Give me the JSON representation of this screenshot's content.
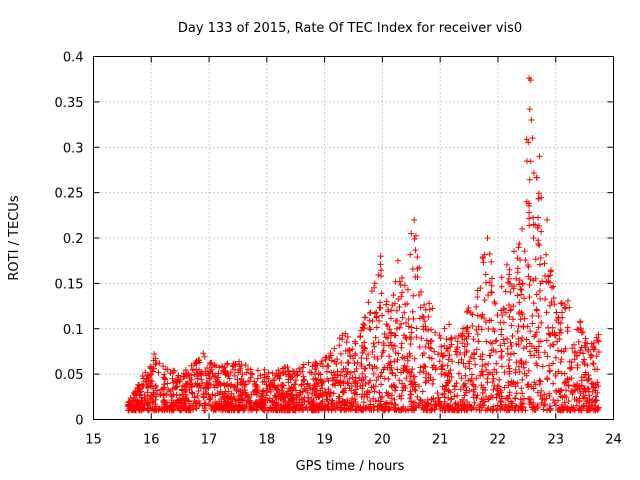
{
  "chart_data": {
    "type": "scatter",
    "title": "Day 133 of 2015, Rate Of TEC Index for receiver vis0",
    "xlabel": "GPS time / hours",
    "ylabel": "ROTI / TECUs",
    "xlim": [
      15,
      24
    ],
    "ylim": [
      0,
      0.4
    ],
    "xticks": [
      "15",
      "16",
      "17",
      "18",
      "19",
      "20",
      "21",
      "22",
      "23",
      "24"
    ],
    "yticks": [
      "0",
      "0.05",
      "0.1",
      "0.15",
      "0.2",
      "0.25",
      "0.3",
      "0.35",
      "0.4"
    ],
    "grid": true,
    "marker": "+",
    "marker_color": "#ff0000",
    "x_range_of_points": [
      15.6,
      23.75
    ],
    "series": [
      {
        "name": "ROTI",
        "envelope": [
          {
            "x": 15.6,
            "y": 0.02
          },
          {
            "x": 15.7,
            "y": 0.03
          },
          {
            "x": 15.85,
            "y": 0.05
          },
          {
            "x": 16.05,
            "y": 0.07
          },
          {
            "x": 16.3,
            "y": 0.055
          },
          {
            "x": 16.6,
            "y": 0.055
          },
          {
            "x": 16.9,
            "y": 0.072
          },
          {
            "x": 17.2,
            "y": 0.06
          },
          {
            "x": 17.5,
            "y": 0.065
          },
          {
            "x": 17.8,
            "y": 0.055
          },
          {
            "x": 18.2,
            "y": 0.058
          },
          {
            "x": 18.6,
            "y": 0.06
          },
          {
            "x": 19.0,
            "y": 0.07
          },
          {
            "x": 19.3,
            "y": 0.095
          },
          {
            "x": 19.6,
            "y": 0.1
          },
          {
            "x": 19.95,
            "y": 0.18
          },
          {
            "x": 20.05,
            "y": 0.13
          },
          {
            "x": 20.25,
            "y": 0.18
          },
          {
            "x": 20.4,
            "y": 0.15
          },
          {
            "x": 20.55,
            "y": 0.22
          },
          {
            "x": 20.75,
            "y": 0.14
          },
          {
            "x": 21.0,
            "y": 0.11
          },
          {
            "x": 21.3,
            "y": 0.1
          },
          {
            "x": 21.6,
            "y": 0.14
          },
          {
            "x": 21.8,
            "y": 0.2
          },
          {
            "x": 22.0,
            "y": 0.15
          },
          {
            "x": 22.15,
            "y": 0.17
          },
          {
            "x": 22.4,
            "y": 0.2
          },
          {
            "x": 22.55,
            "y": 0.375
          },
          {
            "x": 22.6,
            "y": 0.34
          },
          {
            "x": 22.7,
            "y": 0.29
          },
          {
            "x": 22.85,
            "y": 0.22
          },
          {
            "x": 23.0,
            "y": 0.12
          },
          {
            "x": 23.2,
            "y": 0.14
          },
          {
            "x": 23.5,
            "y": 0.1
          },
          {
            "x": 23.75,
            "y": 0.095
          }
        ],
        "highlights": [
          {
            "x": 22.54,
            "y": 0.376
          },
          {
            "x": 22.57,
            "y": 0.374
          },
          {
            "x": 22.55,
            "y": 0.342
          },
          {
            "x": 22.58,
            "y": 0.33
          },
          {
            "x": 22.6,
            "y": 0.31
          },
          {
            "x": 22.72,
            "y": 0.29
          },
          {
            "x": 22.5,
            "y": 0.24
          },
          {
            "x": 20.55,
            "y": 0.22
          },
          {
            "x": 20.5,
            "y": 0.205
          },
          {
            "x": 21.82,
            "y": 0.2
          },
          {
            "x": 19.97,
            "y": 0.18
          },
          {
            "x": 20.27,
            "y": 0.175
          },
          {
            "x": 22.2,
            "y": 0.165
          },
          {
            "x": 22.85,
            "y": 0.22
          },
          {
            "x": 16.05,
            "y": 0.072
          },
          {
            "x": 16.9,
            "y": 0.073
          }
        ]
      }
    ]
  }
}
